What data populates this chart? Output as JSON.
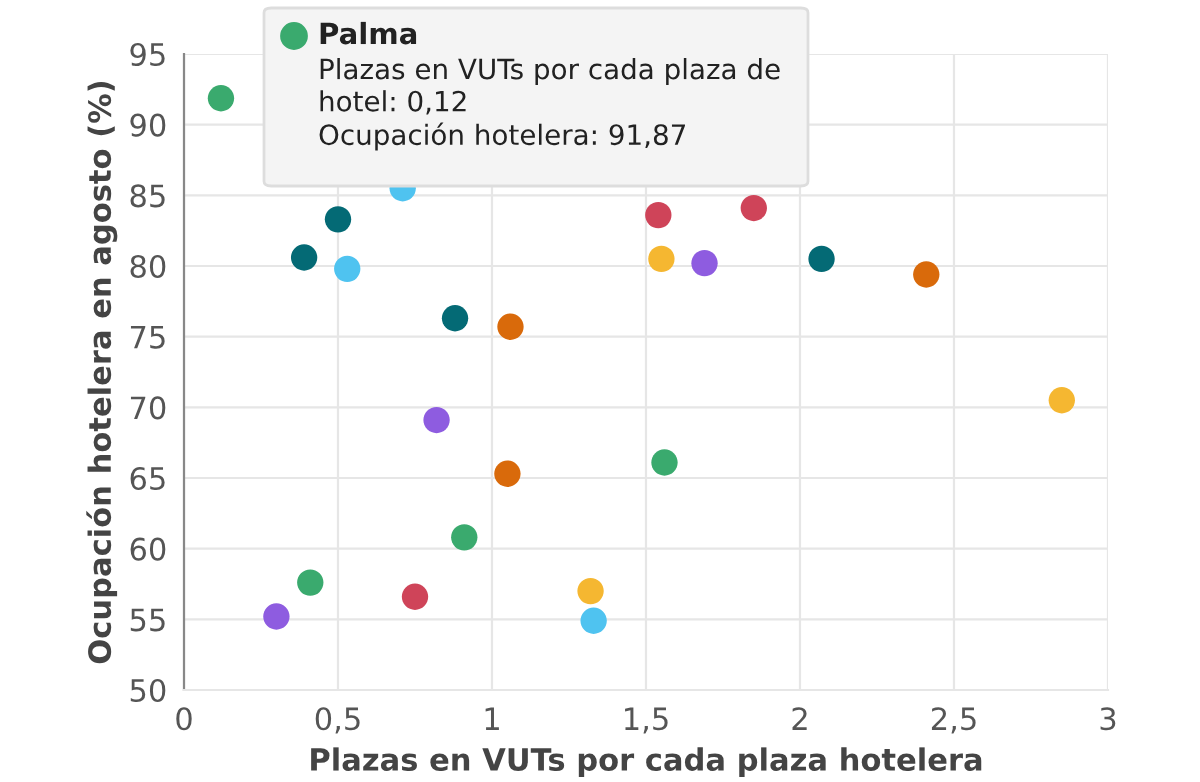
{
  "chart_data": {
    "type": "scatter",
    "xlabel": "Plazas en VUTs por cada plaza hotelera",
    "ylabel": "Ocupación hotelera en agosto (%)",
    "xlim": [
      0,
      3
    ],
    "ylim": [
      50,
      95
    ],
    "xticks": [
      0,
      {
        "value": 0.5,
        "label": "0,5"
      },
      1,
      {
        "value": 1.5,
        "label": "1,5"
      },
      2,
      {
        "value": 2.5,
        "label": "2,5"
      },
      3
    ],
    "yticks": [
      50,
      55,
      60,
      65,
      70,
      75,
      80,
      85,
      90,
      95
    ],
    "grid": true,
    "marker": "circle",
    "series": [
      {
        "color": "#3aaa6e",
        "x": [
          0.12,
          1.56,
          0.91,
          0.41
        ],
        "values": [
          91.87,
          66.1,
          60.8,
          57.6
        ]
      },
      {
        "color": "#4fc3f0",
        "x": [
          0.71,
          0.53,
          1.33
        ],
        "values": [
          85.5,
          79.8,
          54.9
        ]
      },
      {
        "color": "#046a75",
        "x": [
          0.5,
          0.39,
          0.88,
          2.07
        ],
        "values": [
          83.3,
          80.6,
          76.3,
          80.5
        ]
      },
      {
        "color": "#d96a0b",
        "x": [
          1.06,
          2.41,
          1.05
        ],
        "values": [
          75.7,
          79.4,
          65.3
        ]
      },
      {
        "color": "#cf4459",
        "x": [
          1.54,
          1.85,
          0.75
        ],
        "values": [
          83.6,
          84.1,
          56.6
        ]
      },
      {
        "color": "#f5b731",
        "x": [
          1.55,
          2.85,
          1.32
        ],
        "values": [
          80.5,
          70.5,
          57.0
        ]
      },
      {
        "color": "#8e5ce0",
        "x": [
          1.69,
          0.82,
          0.3
        ],
        "values": [
          80.2,
          69.1,
          55.2
        ]
      }
    ],
    "annotations": [
      "Palma\nPlazas en VUTs por cada plaza de\nhotel: 0,12\nOcupación hotelera: 91,87"
    ]
  }
}
